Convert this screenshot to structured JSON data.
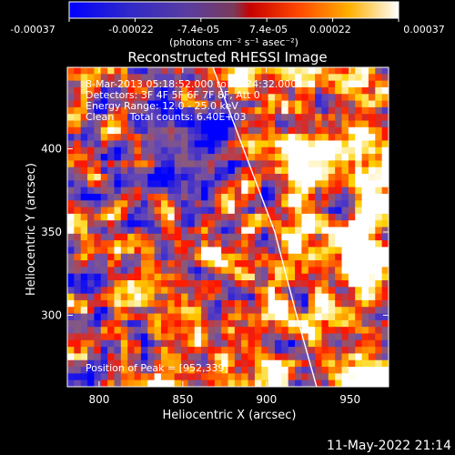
{
  "colorbar": {
    "ticks": [
      "-0.00037",
      "-0.00022",
      "-7.4e-05",
      "7.4e-05",
      "0.00022",
      "0.00037"
    ],
    "units_label": "(photons cm⁻² s⁻¹ asec⁻²)",
    "range": [
      -0.00037,
      0.00037
    ]
  },
  "timestamp": "11-May-2022 21:14",
  "annotations": {
    "time": "8-Mar-2013 05:18:52.000 to 05:24:32.000",
    "detectors": "Detectors: 3F 4F 5F 6F 7F 8F, Att 0",
    "energy": "Energy Range: 12.0 - 25.0 keV",
    "clean": "Clean     Total counts: 6.40E+03",
    "peak": "Position of Peak = [952,339]"
  },
  "chart_data": {
    "type": "heatmap",
    "title": "Reconstructed RHESSI Image",
    "xlabel": "Heliocentric X (arcsec)",
    "ylabel": "Heliocentric Y (arcsec)",
    "xlim": [
      781,
      973
    ],
    "ylim": [
      257,
      449
    ],
    "xticks": [
      800,
      850,
      900,
      950
    ],
    "yticks": [
      300,
      350,
      400
    ],
    "peak": {
      "x": 952,
      "y": 339
    },
    "limb_curve": [
      [
        868,
        449
      ],
      [
        890,
        390
      ],
      [
        905,
        350
      ],
      [
        918,
        300
      ],
      [
        930,
        257
      ]
    ],
    "grid_size": [
      48,
      48
    ],
    "colormap": [
      "#0000ff",
      "#3a2bd0",
      "#6b4bb0",
      "#8a5a7a",
      "#ff1400",
      "#ff7a00",
      "#ffd200",
      "#ffffff"
    ]
  }
}
